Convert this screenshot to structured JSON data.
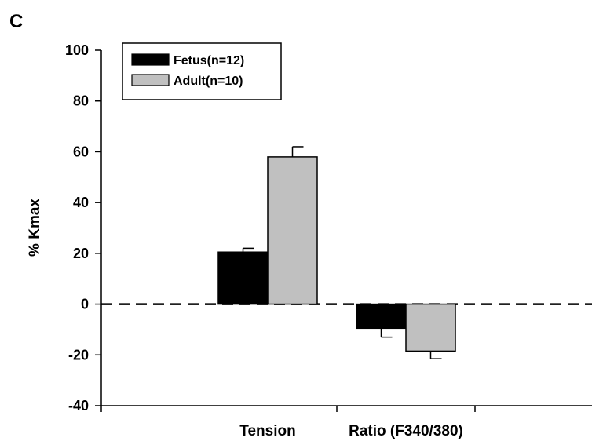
{
  "panel_label": "C",
  "chart_data": {
    "type": "bar",
    "categories": [
      "Tension",
      "Ratio (F340/380)"
    ],
    "series": [
      {
        "name": "Fetus(n=12)",
        "values": [
          20.5,
          -9.5
        ],
        "errors": [
          1.5,
          3.5
        ],
        "color": "#000000"
      },
      {
        "name": "Adult(n=10)",
        "values": [
          58,
          -18.5
        ],
        "errors": [
          4,
          3
        ],
        "color": "#c0c0c0"
      }
    ],
    "ylabel": "% Kmax",
    "ylim": [
      -40,
      100
    ],
    "yticks": [
      -40,
      -20,
      0,
      20,
      40,
      60,
      80,
      100
    ],
    "reference_line": {
      "y": 0,
      "style": "dashed"
    },
    "legend_position": "top-left",
    "grid": false
  }
}
